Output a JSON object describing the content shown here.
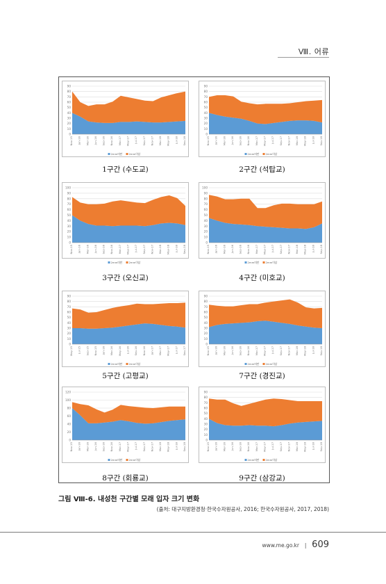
{
  "header": {
    "chapter_title": "Ⅷ. 어류"
  },
  "figure": {
    "caption": "그림 Ⅷ-6. 내성천 구간별 모래 입자 크기 변화",
    "source": "(출처: 대구지방환경청·한국수자원공사, 2016; 한국수자원공사, 2017, 2018)"
  },
  "footer": {
    "url": "www.me.go.kr",
    "separator": "|",
    "page_number": "609"
  },
  "colors": {
    "series_under_2mm": "#5b9bd5",
    "series_over_2mm": "#ed7d31"
  },
  "chart_data": [
    {
      "type": "area",
      "panel_title": "1구간 (수도교)",
      "ylim": [
        0,
        90
      ],
      "yticks": [
        0,
        10,
        20,
        30,
        40,
        50,
        60,
        70,
        80,
        90
      ],
      "x": [
        "Nov-15",
        "Jan-16",
        "Mar-16",
        "Jun-16",
        "Sep-16",
        "Nov-16",
        "Mar-17",
        "May-17",
        "Jul-17",
        "Sep-17",
        "Nov-17",
        "Mar-18",
        "May-18",
        "Jul-18",
        "Sep-18"
      ],
      "series": [
        {
          "name": "2mm미만",
          "values": [
            40,
            33,
            24,
            22,
            21,
            21,
            23,
            23,
            24,
            23,
            22,
            22,
            23,
            24,
            25
          ]
        },
        {
          "name": "2mm이상",
          "values": [
            40,
            27,
            29,
            34,
            35,
            40,
            49,
            46,
            42,
            40,
            40,
            47,
            50,
            53,
            55
          ]
        }
      ]
    },
    {
      "type": "area",
      "panel_title": "2구간 (석탑교)",
      "ylim": [
        0,
        90
      ],
      "yticks": [
        0,
        10,
        20,
        30,
        40,
        50,
        60,
        70,
        80,
        90
      ],
      "x": [
        "Nov-15",
        "Jan-16",
        "Mar-16",
        "Jun-16",
        "Sep-16",
        "Nov-16",
        "Mar-17",
        "May-17",
        "Jul-17",
        "Sep-17",
        "Nov-17",
        "Mar-18",
        "May-18",
        "Jul-18",
        "Sep-18"
      ],
      "series": [
        {
          "name": "2mm미만",
          "values": [
            40,
            36,
            33,
            31,
            29,
            25,
            20,
            19,
            21,
            23,
            25,
            26,
            26,
            25,
            22
          ]
        },
        {
          "name": "2mm이상",
          "values": [
            30,
            37,
            40,
            40,
            32,
            33,
            36,
            38,
            36,
            34,
            33,
            34,
            36,
            38,
            42
          ]
        }
      ]
    },
    {
      "type": "area",
      "panel_title": "3구간 (오신교)",
      "ylim": [
        0,
        100
      ],
      "yticks": [
        0,
        10,
        20,
        30,
        40,
        50,
        60,
        70,
        80,
        90,
        100
      ],
      "x": [
        "Nov-15",
        "Jan-16",
        "Mar-16",
        "Jun-16",
        "Sep-16",
        "Nov-16",
        "Mar-17",
        "May-17",
        "Jul-17",
        "Sep-17",
        "Nov-17",
        "Mar-18",
        "May-18",
        "Jul-18",
        "Sep-18"
      ],
      "series": [
        {
          "name": "2mm미만",
          "values": [
            50,
            40,
            34,
            31,
            31,
            30,
            31,
            31,
            31,
            30,
            32,
            35,
            36,
            35,
            32
          ]
        },
        {
          "name": "2mm이상",
          "values": [
            33,
            33,
            36,
            39,
            40,
            45,
            46,
            44,
            42,
            42,
            46,
            48,
            50,
            46,
            35
          ]
        }
      ]
    },
    {
      "type": "area",
      "panel_title": "4구간 (미호교)",
      "ylim": [
        0,
        100
      ],
      "yticks": [
        0,
        10,
        20,
        30,
        40,
        50,
        60,
        70,
        80,
        90,
        100
      ],
      "x": [
        "Nov-15",
        "Jan-16",
        "Mar-16",
        "Jun-16",
        "Sep-16",
        "Nov-16",
        "Mar-17",
        "May-17",
        "Jul-17",
        "Sep-17",
        "Nov-17",
        "Mar-18",
        "May-18",
        "Jul-18",
        "Sep-18"
      ],
      "series": [
        {
          "name": "2mm미만",
          "values": [
            45,
            40,
            36,
            34,
            33,
            32,
            30,
            29,
            28,
            27,
            26,
            26,
            25,
            28,
            35
          ]
        },
        {
          "name": "2mm이상",
          "values": [
            42,
            44,
            43,
            45,
            47,
            48,
            33,
            34,
            40,
            44,
            45,
            44,
            45,
            42,
            40
          ]
        }
      ]
    },
    {
      "type": "area",
      "panel_title": "5구간 (고평교)",
      "ylim": [
        0,
        90
      ],
      "yticks": [
        0,
        10,
        20,
        30,
        40,
        50,
        60,
        70,
        80,
        90
      ],
      "x": [
        "May-15",
        "Jul-15",
        "Sep-15",
        "Nov-15",
        "Jan-16",
        "Mar-16",
        "May-16",
        "Jul-16",
        "Sep-16",
        "Nov-16",
        "Jan-17",
        "Mar-17",
        "May-17",
        "Jul-17",
        "Sep-17"
      ],
      "series": [
        {
          "name": "2mm미만",
          "values": [
            30,
            30,
            29,
            29,
            30,
            31,
            33,
            35,
            37,
            39,
            38,
            36,
            34,
            33,
            31
          ]
        },
        {
          "name": "2mm이상",
          "values": [
            37,
            35,
            30,
            31,
            34,
            37,
            38,
            38,
            39,
            36,
            37,
            40,
            43,
            44,
            47
          ]
        }
      ]
    },
    {
      "type": "area",
      "panel_title": "7구간 (경진교)",
      "ylim": [
        0,
        90
      ],
      "yticks": [
        0,
        10,
        20,
        30,
        40,
        50,
        60,
        70,
        80,
        90
      ],
      "x": [
        "Nov-15",
        "Jan-16",
        "Mar-16",
        "Jun-16",
        "Sep-16",
        "Nov-16",
        "Mar-17",
        "May-17",
        "Jul-17",
        "Sep-17",
        "Nov-17",
        "Mar-18",
        "May-18",
        "Jul-18",
        "Sep-18"
      ],
      "series": [
        {
          "name": "2mm미만",
          "values": [
            32,
            36,
            38,
            39,
            40,
            41,
            43,
            44,
            42,
            40,
            38,
            35,
            33,
            31,
            30
          ]
        },
        {
          "name": "2mm이상",
          "values": [
            42,
            36,
            33,
            32,
            33,
            34,
            32,
            34,
            38,
            42,
            46,
            43,
            36,
            36,
            38
          ]
        }
      ]
    },
    {
      "type": "area",
      "panel_title": "8구간 (회룡교)",
      "ylim": [
        0,
        120
      ],
      "yticks": [
        0,
        20,
        40,
        60,
        80,
        100,
        120
      ],
      "x": [
        "Nov-15",
        "Jan-16",
        "Mar-16",
        "Jun-16",
        "Sep-16",
        "Nov-16",
        "Mar-17",
        "May-17",
        "Jul-17",
        "Sep-17",
        "Nov-17",
        "Mar-18",
        "May-18",
        "Jul-18",
        "Sep-18"
      ],
      "series": [
        {
          "name": "2mm미만",
          "values": [
            80,
            62,
            42,
            42,
            44,
            46,
            50,
            47,
            43,
            41,
            42,
            45,
            48,
            50,
            52
          ]
        },
        {
          "name": "2mm이상",
          "values": [
            15,
            28,
            45,
            35,
            25,
            30,
            38,
            38,
            40,
            40,
            38,
            37,
            36,
            34,
            32
          ]
        }
      ]
    },
    {
      "type": "area",
      "panel_title": "9구간 (삼강교)",
      "ylim": [
        0,
        90
      ],
      "yticks": [
        0,
        10,
        20,
        30,
        40,
        50,
        60,
        70,
        80,
        90
      ],
      "x": [
        "Nov-15",
        "Jan-16",
        "Mar-16",
        "Jun-16",
        "Sep-16",
        "Nov-16",
        "Mar-17",
        "May-17",
        "Jul-17",
        "Sep-17",
        "Nov-17",
        "Mar-18",
        "May-18",
        "Jul-18",
        "Sep-18"
      ],
      "series": [
        {
          "name": "2mm미만",
          "values": [
            40,
            32,
            28,
            27,
            27,
            28,
            27,
            27,
            26,
            28,
            31,
            33,
            34,
            35,
            36
          ]
        },
        {
          "name": "2mm이상",
          "values": [
            38,
            44,
            48,
            42,
            37,
            40,
            45,
            49,
            52,
            49,
            44,
            40,
            39,
            38,
            37
          ]
        }
      ]
    }
  ]
}
